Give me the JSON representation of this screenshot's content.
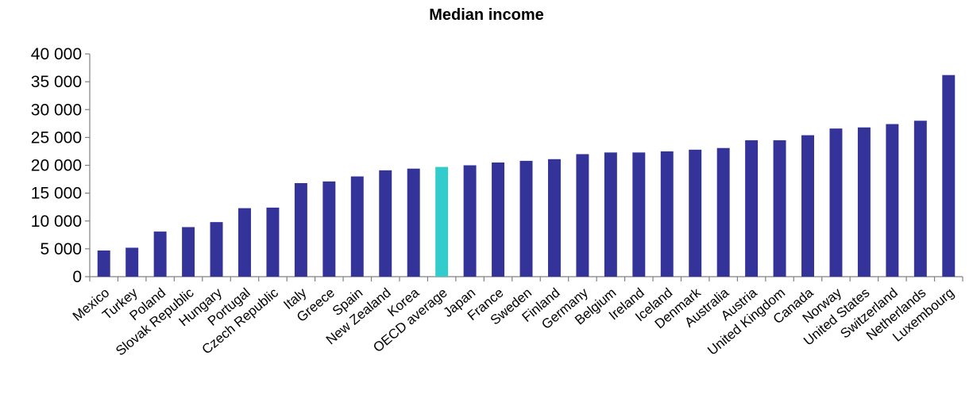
{
  "chart_data": {
    "type": "bar",
    "title": "Median income",
    "xlabel": "",
    "ylabel": "",
    "ylim": [
      0,
      40000
    ],
    "yticks": [
      0,
      5000,
      10000,
      15000,
      20000,
      25000,
      30000,
      35000,
      40000
    ],
    "ytick_labels": [
      "0",
      "5 000",
      "10 000",
      "15 000",
      "20 000",
      "25 000",
      "30 000",
      "35 000",
      "40 000"
    ],
    "grid": false,
    "legend": "none",
    "categories": [
      "Mexico",
      "Turkey",
      "Poland",
      "Slovak Republic",
      "Hungary",
      "Portugal",
      "Czech Republic",
      "Italy",
      "Greece",
      "Spain",
      "New Zealand",
      "Korea",
      "OECD average",
      "Japan",
      "France",
      "Sweden",
      "Finland",
      "Germany",
      "Belgium",
      "Ireland",
      "Iceland",
      "Denmark",
      "Australia",
      "Austria",
      "United Kingdom",
      "Canada",
      "Norway",
      "United States",
      "Switzerland",
      "Netherlands",
      "Luxembourg"
    ],
    "values": [
      4700,
      5200,
      8100,
      8900,
      9800,
      12300,
      12400,
      16800,
      17100,
      18000,
      19100,
      19400,
      19700,
      20000,
      20500,
      20800,
      21100,
      22000,
      22300,
      22300,
      22500,
      22800,
      23100,
      24500,
      24500,
      25400,
      26600,
      26800,
      27400,
      28000,
      36200
    ],
    "bar_color": "#333399",
    "highlight_category": "OECD average",
    "highlight_color": "#33CCCC",
    "axis_color": "#808080"
  }
}
